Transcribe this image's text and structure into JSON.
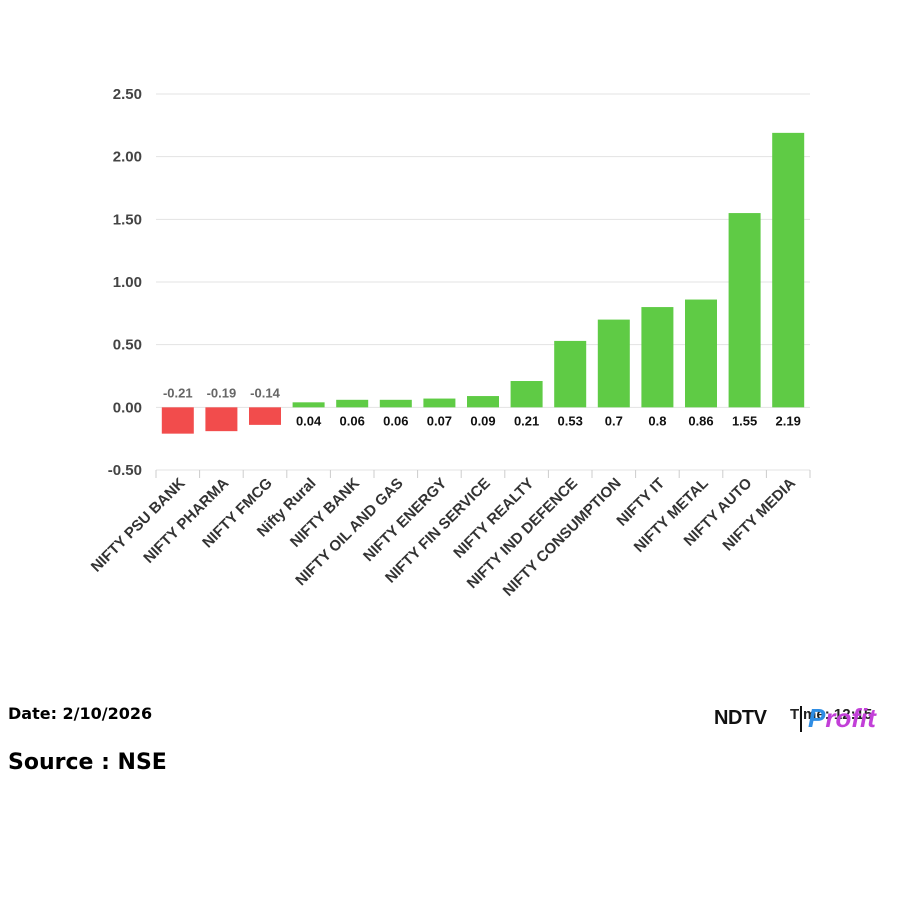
{
  "chart_data": {
    "type": "bar",
    "categories": [
      "NIFTY PSU BANK",
      "NIFTY PHARMA",
      "NIFTY FMCG",
      "Nifty Rural",
      "NIFTY BANK",
      "NIFTY OIL AND GAS",
      "NIFTY ENERGY",
      "NIFTY FIN SERVICE",
      "NIFTY REALTY",
      "NIFTY IND DEFENCE",
      "NIFTY CONSUMPTION",
      "NIFTY IT",
      "NIFTY METAL",
      "NIFTY AUTO",
      "NIFTY MEDIA"
    ],
    "values": [
      -0.21,
      -0.19,
      -0.14,
      0.04,
      0.06,
      0.06,
      0.07,
      0.09,
      0.21,
      0.53,
      0.7,
      0.8,
      0.86,
      1.55,
      2.19
    ],
    "data_labels": [
      "-0.21",
      "-0.19",
      "-0.14",
      "0.04",
      "0.06",
      "0.06",
      "0.07",
      "0.09",
      "0.21",
      "0.53",
      "0.7",
      "0.8",
      "0.86",
      "1.55",
      "2.19"
    ],
    "ylim": [
      -0.5,
      2.5
    ],
    "yticks": [
      "2.50",
      "2.00",
      "1.50",
      "1.00",
      "0.50",
      "0.00",
      "-0.50"
    ],
    "ytick_values": [
      2.5,
      2.0,
      1.5,
      1.0,
      0.5,
      0.0,
      -0.5
    ],
    "grid": true,
    "colors": {
      "positive": "#5fcb45",
      "negative": "#f24c4c"
    }
  },
  "footer": {
    "date": "Date: 2/10/2026",
    "source": "Source : NSE"
  },
  "brand": {
    "ndtv": "NDTV",
    "time": "Time: 12:15",
    "profit_p": "P",
    "profit_rest": "rofit"
  }
}
